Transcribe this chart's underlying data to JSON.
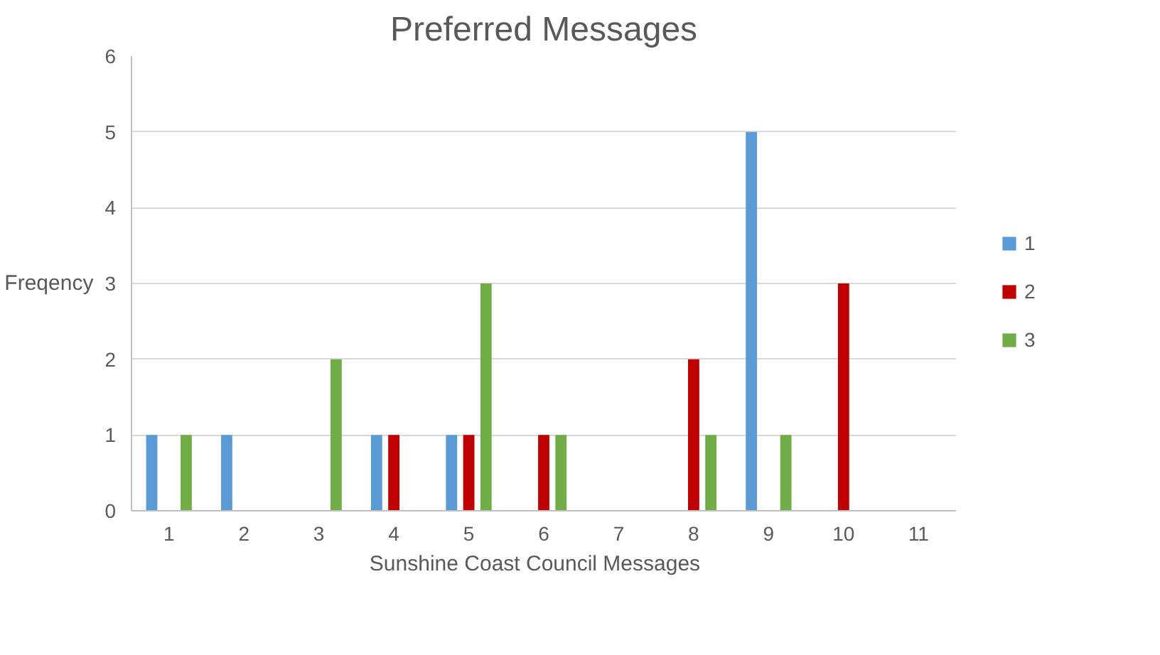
{
  "chart_data": {
    "type": "bar",
    "title": "Preferred Messages",
    "xlabel": "Sunshine  Coast  Council  Messages",
    "ylabel": "Freqency",
    "categories": [
      "1",
      "2",
      "3",
      "4",
      "5",
      "6",
      "7",
      "8",
      "9",
      "10",
      "11"
    ],
    "series": [
      {
        "name": "1",
        "color": "#5b9bd5",
        "values": [
          1,
          1,
          0,
          1,
          1,
          0,
          0,
          0,
          5,
          0,
          0
        ]
      },
      {
        "name": "2",
        "color": "#c00000",
        "values": [
          0,
          0,
          0,
          1,
          1,
          1,
          0,
          2,
          0,
          3,
          0
        ]
      },
      {
        "name": "3",
        "color": "#70ad47",
        "values": [
          1,
          0,
          2,
          0,
          3,
          1,
          0,
          1,
          1,
          0,
          0
        ]
      }
    ],
    "ylim": [
      0,
      6
    ],
    "yticks": [
      0,
      1,
      2,
      3,
      4,
      5,
      6
    ],
    "grid": "y",
    "legend": "right"
  }
}
